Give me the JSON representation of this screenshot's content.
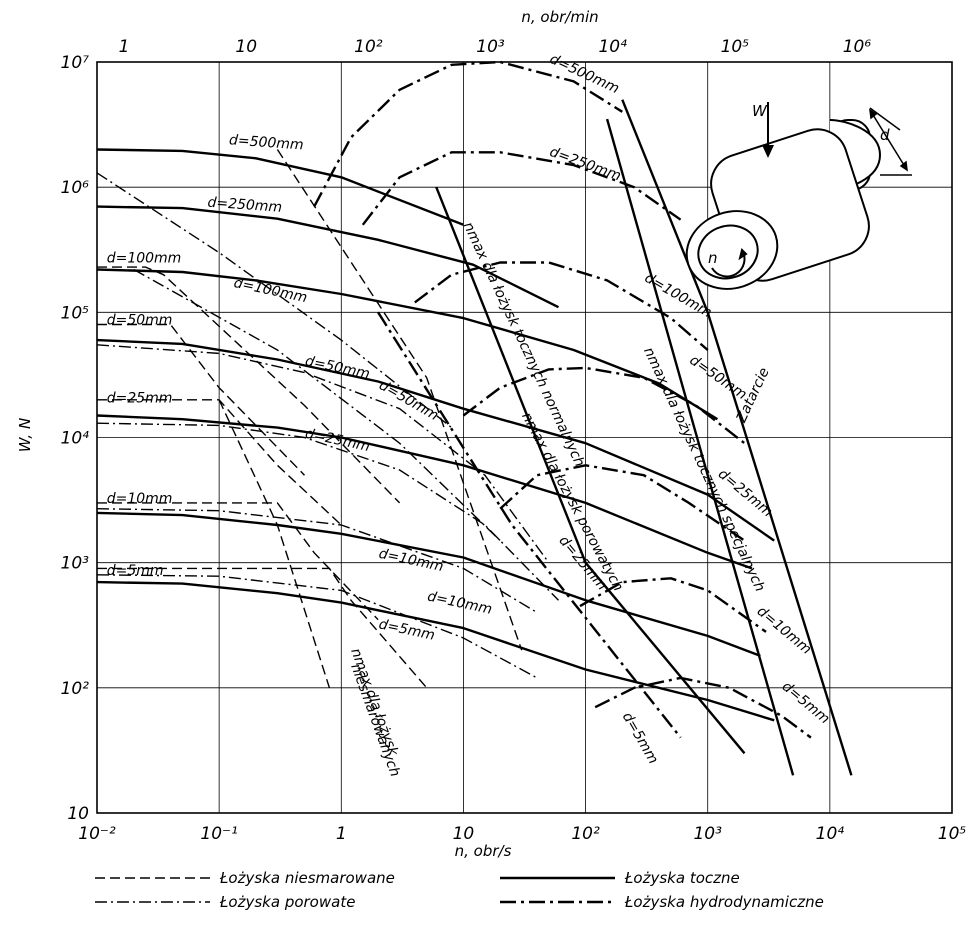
{
  "chart_data": {
    "type": "line",
    "xscale": "log",
    "yscale": "log",
    "xlim": [
      0.01,
      100000
    ],
    "ylim": [
      10,
      10000000
    ],
    "xlabel": "n, obr/s",
    "ylabel": "W, N",
    "top_axis": {
      "label": "n, obr/min",
      "ticks": [
        {
          "v": 1,
          "t": "1"
        },
        {
          "v": 10,
          "t": "10"
        },
        {
          "v": 100,
          "t": "10²"
        },
        {
          "v": 1000,
          "t": "10³"
        },
        {
          "v": 10000,
          "t": "10⁴"
        },
        {
          "v": 100000,
          "t": "10⁵"
        },
        {
          "v": 1000000,
          "t": "10⁶"
        }
      ]
    },
    "x_ticks": [
      {
        "v": 0.01,
        "t": "10⁻²"
      },
      {
        "v": 0.1,
        "t": "10⁻¹"
      },
      {
        "v": 1,
        "t": "1"
      },
      {
        "v": 10,
        "t": "10"
      },
      {
        "v": 100,
        "t": "10²"
      },
      {
        "v": 1000,
        "t": "10³"
      },
      {
        "v": 10000,
        "t": "10⁴"
      },
      {
        "v": 100000,
        "t": "10⁵"
      }
    ],
    "y_ticks": [
      {
        "v": 10,
        "t": "10"
      },
      {
        "v": 100,
        "t": "10²"
      },
      {
        "v": 1000,
        "t": "10³"
      },
      {
        "v": 10000,
        "t": "10⁴"
      },
      {
        "v": 100000,
        "t": "10⁵"
      },
      {
        "v": 1000000,
        "t": "10⁶"
      },
      {
        "v": 10000000,
        "t": "10⁷"
      }
    ],
    "grid": true,
    "legend_position": "bottom",
    "legend": [
      {
        "style": "unlubricated",
        "label": "Łożyska niesmarowane"
      },
      {
        "style": "rolling",
        "label": "Łożyska toczne"
      },
      {
        "style": "porous",
        "label": "Łożyska porowate"
      },
      {
        "style": "hydro",
        "label": "Łożyska hydrodynamiczne"
      }
    ],
    "series": [
      {
        "style": "rolling",
        "name": "d=500mm",
        "points": [
          [
            0.01,
            2000000
          ],
          [
            0.05,
            1950000
          ],
          [
            0.2,
            1700000
          ],
          [
            1,
            1200000
          ],
          [
            10,
            500000
          ]
        ]
      },
      {
        "style": "rolling",
        "name": "d=250mm",
        "points": [
          [
            0.01,
            700000
          ],
          [
            0.05,
            680000
          ],
          [
            0.3,
            560000
          ],
          [
            2,
            380000
          ],
          [
            12,
            240000
          ],
          [
            60,
            110000
          ]
        ]
      },
      {
        "style": "rolling",
        "name": "d=100mm",
        "points": [
          [
            0.01,
            220000
          ],
          [
            0.05,
            210000
          ],
          [
            0.2,
            180000
          ],
          [
            1,
            140000
          ],
          [
            10,
            90000
          ],
          [
            80,
            50000
          ],
          [
            400,
            27000
          ],
          [
            1200,
            14000
          ]
        ]
      },
      {
        "style": "rolling",
        "name": "d=50mm",
        "points": [
          [
            0.01,
            60000
          ],
          [
            0.05,
            56000
          ],
          [
            0.3,
            42000
          ],
          [
            2,
            28000
          ],
          [
            10,
            17000
          ],
          [
            100,
            9000
          ],
          [
            1000,
            3500
          ],
          [
            3500,
            1500
          ]
        ]
      },
      {
        "style": "rolling",
        "name": "d=25mm",
        "points": [
          [
            0.01,
            15000
          ],
          [
            0.05,
            14000
          ],
          [
            0.3,
            12000
          ],
          [
            1,
            10000
          ],
          [
            10,
            6000
          ],
          [
            100,
            3000
          ],
          [
            1000,
            1200
          ],
          [
            2300,
            900
          ]
        ]
      },
      {
        "style": "rolling",
        "name": "d=10mm",
        "points": [
          [
            0.01,
            2500
          ],
          [
            0.05,
            2400
          ],
          [
            0.3,
            2000
          ],
          [
            1,
            1700
          ],
          [
            10,
            1100
          ],
          [
            100,
            500
          ],
          [
            1000,
            260
          ],
          [
            2700,
            180
          ]
        ]
      },
      {
        "style": "rolling",
        "name": "d=5mm",
        "points": [
          [
            0.01,
            700
          ],
          [
            0.05,
            680
          ],
          [
            0.3,
            570
          ],
          [
            1,
            480
          ],
          [
            10,
            300
          ],
          [
            100,
            140
          ],
          [
            1000,
            80
          ],
          [
            3500,
            55
          ]
        ]
      },
      {
        "style": "unlubricated",
        "name": "d=100mm",
        "points": [
          [
            0.01,
            230000
          ],
          [
            0.025,
            230000
          ],
          [
            0.035,
            200000
          ],
          [
            0.5,
            18000
          ],
          [
            3,
            3000
          ]
        ]
      },
      {
        "style": "unlubricated",
        "name": "d=50mm",
        "points": [
          [
            0.01,
            80000
          ],
          [
            0.04,
            80000
          ],
          [
            0.1,
            25000
          ],
          [
            0.5,
            5000
          ]
        ]
      },
      {
        "style": "unlubricated",
        "name": "d=25mm",
        "points": [
          [
            0.01,
            20000
          ],
          [
            0.1,
            20000
          ],
          [
            0.3,
            6000
          ],
          [
            1,
            2000
          ]
        ]
      },
      {
        "style": "unlubricated",
        "name": "d=10mm",
        "points": [
          [
            0.01,
            3000
          ],
          [
            0.3,
            3000
          ],
          [
            0.6,
            1200
          ],
          [
            2,
            350
          ]
        ]
      },
      {
        "style": "unlubricated",
        "name": "d=5mm",
        "points": [
          [
            0.01,
            900
          ],
          [
            0.8,
            900
          ],
          [
            1.2,
            500
          ],
          [
            5,
            100
          ]
        ]
      },
      {
        "style": "porous",
        "name": "d=500mm",
        "points": [
          [
            0.01,
            1300000
          ],
          [
            0.1,
            300000
          ],
          [
            1,
            60000
          ],
          [
            8,
            12000
          ]
        ]
      },
      {
        "style": "porous",
        "name": "d=100mm",
        "points": [
          [
            0.02,
            220000
          ],
          [
            0.3,
            50000
          ],
          [
            3,
            9000
          ],
          [
            20,
            1500
          ]
        ]
      },
      {
        "style": "porous",
        "name": "d=50mm",
        "points": [
          [
            0.01,
            55000
          ],
          [
            0.1,
            47000
          ],
          [
            0.5,
            33000
          ],
          [
            3,
            17000
          ],
          [
            15,
            5000
          ],
          [
            50,
            1000
          ]
        ]
      },
      {
        "style": "porous",
        "name": "d=25mm",
        "points": [
          [
            0.01,
            13000
          ],
          [
            0.1,
            12500
          ],
          [
            0.5,
            10000
          ],
          [
            3,
            5500
          ],
          [
            15,
            2000
          ],
          [
            60,
            500
          ]
        ]
      },
      {
        "style": "porous",
        "name": "d=10mm",
        "points": [
          [
            0.01,
            2700
          ],
          [
            0.1,
            2600
          ],
          [
            1,
            2000
          ],
          [
            10,
            900
          ],
          [
            40,
            400
          ]
        ]
      },
      {
        "style": "porous",
        "name": "d=5mm",
        "points": [
          [
            0.01,
            800
          ],
          [
            0.1,
            780
          ],
          [
            1,
            600
          ],
          [
            10,
            250
          ],
          [
            40,
            120
          ]
        ]
      },
      {
        "style": "hydro",
        "name": "d=500mm",
        "points": [
          [
            0.6,
            700000
          ],
          [
            1.2,
            2500000
          ],
          [
            3,
            6000000
          ],
          [
            8,
            9500000
          ],
          [
            20,
            10000000
          ],
          [
            80,
            7000000
          ],
          [
            200,
            4000000
          ]
        ]
      },
      {
        "style": "hydro",
        "name": "d=250mm",
        "points": [
          [
            1.5,
            500000
          ],
          [
            3,
            1200000
          ],
          [
            8,
            1900000
          ],
          [
            20,
            1900000
          ],
          [
            80,
            1500000
          ],
          [
            250,
            1000000
          ],
          [
            600,
            550000
          ]
        ]
      },
      {
        "style": "hydro",
        "name": "d=100mm",
        "points": [
          [
            4,
            120000
          ],
          [
            8,
            200000
          ],
          [
            20,
            250000
          ],
          [
            50,
            250000
          ],
          [
            150,
            180000
          ],
          [
            500,
            90000
          ],
          [
            1000,
            50000
          ]
        ]
      },
      {
        "style": "hydro",
        "name": "d=50mm",
        "points": [
          [
            10,
            15000
          ],
          [
            20,
            25000
          ],
          [
            50,
            35000
          ],
          [
            100,
            36000
          ],
          [
            300,
            30000
          ],
          [
            800,
            18000
          ],
          [
            2000,
            9000
          ]
        ]
      },
      {
        "style": "hydro",
        "name": "d=25mm",
        "points": [
          [
            20,
            2700
          ],
          [
            40,
            5000
          ],
          [
            100,
            6000
          ],
          [
            300,
            5000
          ],
          [
            700,
            3000
          ],
          [
            2000,
            1500
          ]
        ]
      },
      {
        "style": "hydro",
        "name": "d=10mm",
        "points": [
          [
            90,
            450
          ],
          [
            200,
            700
          ],
          [
            500,
            750
          ],
          [
            1000,
            600
          ],
          [
            3000,
            280
          ]
        ]
      },
      {
        "style": "hydro",
        "name": "d=5mm",
        "points": [
          [
            120,
            70
          ],
          [
            250,
            100
          ],
          [
            600,
            120
          ],
          [
            1500,
            100
          ],
          [
            4000,
            60
          ],
          [
            7000,
            40
          ]
        ]
      },
      {
        "style": "rolling",
        "name": "nmax dla łożysk tocznych normalnych",
        "points": [
          [
            6,
            1000000
          ],
          [
            100,
            1000
          ],
          [
            2000,
            30
          ]
        ]
      },
      {
        "style": "rolling",
        "name": "nmax dla łożysk tocznych specjalnych",
        "points": [
          [
            150,
            3500000
          ],
          [
            1000,
            5000
          ],
          [
            5000,
            20
          ]
        ]
      },
      {
        "style": "rolling",
        "name": "Zatarcie",
        "points": [
          [
            200,
            5000000
          ],
          [
            1000,
            100000
          ],
          [
            15000,
            20
          ]
        ]
      },
      {
        "style": "hydro",
        "name": "nmax dla łożysk porowatych",
        "points": [
          [
            2,
            100000
          ],
          [
            25,
            2000
          ],
          [
            600,
            40
          ]
        ]
      },
      {
        "style": "unlubricated",
        "name": "nmax dla łożysk niesmarowanych",
        "points": [
          [
            0.1,
            20000
          ],
          [
            0.3,
            2000
          ],
          [
            0.8,
            100
          ]
        ]
      },
      {
        "style": "unlubricated",
        "name": "",
        "points": [
          [
            0.3,
            2000000
          ],
          [
            5,
            30000
          ],
          [
            30,
            200
          ]
        ]
      }
    ],
    "annotations": [
      {
        "text": "d=500mm",
        "x": 0.12,
        "y": 2200000,
        "angle": 4
      },
      {
        "text": "d=250mm",
        "x": 0.08,
        "y": 700000,
        "angle": 4
      },
      {
        "text": "d=100mm",
        "x": 0.012,
        "y": 250000,
        "angle": 0
      },
      {
        "text": "d=100mm",
        "x": 0.13,
        "y": 160000,
        "angle": 12
      },
      {
        "text": "d=50mm",
        "x": 0.012,
        "y": 80000,
        "angle": 0
      },
      {
        "text": "d=50mm",
        "x": 0.5,
        "y": 38000,
        "angle": 12
      },
      {
        "text": "d=25mm",
        "x": 0.012,
        "y": 19000,
        "angle": 0
      },
      {
        "text": "d=25mm",
        "x": 0.5,
        "y": 10000,
        "angle": 12
      },
      {
        "text": "d=10mm",
        "x": 0.012,
        "y": 3000,
        "angle": 0
      },
      {
        "text": "d=10mm",
        "x": 2,
        "y": 1100,
        "angle": 12
      },
      {
        "text": "d=5mm",
        "x": 0.012,
        "y": 800,
        "angle": 0
      },
      {
        "text": "d=5mm",
        "x": 2,
        "y": 300,
        "angle": 12
      },
      {
        "text": "d=50mm",
        "x": 2,
        "y": 25000,
        "angle": 30
      },
      {
        "text": "d=500mm",
        "x": 50,
        "y": 10000000,
        "angle": 25
      },
      {
        "text": "d=250mm",
        "x": 50,
        "y": 1800000,
        "angle": 20
      },
      {
        "text": "d=100mm",
        "x": 300,
        "y": 180000,
        "angle": 30
      },
      {
        "text": "d=50mm",
        "x": 700,
        "y": 40000,
        "angle": 35
      },
      {
        "text": "d=25mm",
        "x": 1200,
        "y": 5000,
        "angle": 40
      },
      {
        "text": "d=25mm",
        "x": 60,
        "y": 1500,
        "angle": 50
      },
      {
        "text": "d=10mm",
        "x": 5,
        "y": 500,
        "angle": 12
      },
      {
        "text": "d=10mm",
        "x": 2500,
        "y": 400,
        "angle": 40
      },
      {
        "text": "d=5mm",
        "x": 4000,
        "y": 100,
        "angle": 40
      },
      {
        "text": "d=5mm",
        "x": 200,
        "y": 60,
        "angle": 60
      },
      {
        "text": "nmax dla łożysk tocznych normalnych",
        "x": 10,
        "y": 500000,
        "angle": 65
      },
      {
        "text": "nmax dla łożysk tocznych specjalnych",
        "x": 300,
        "y": 50000,
        "angle": 65
      },
      {
        "text": "nmax dla łożysk porowatych",
        "x": 30,
        "y": 15000,
        "angle": 62
      },
      {
        "text": "nmax dla łożysk",
        "x": 1.2,
        "y": 200,
        "angle": 70
      },
      {
        "text": "niesmarowanych",
        "x": 1.2,
        "y": 150,
        "angle": 70
      },
      {
        "text": "Zatarcie",
        "x": 2000,
        "y": 13000,
        "angle": -65
      }
    ]
  },
  "inset": {
    "load_label": "W",
    "diameter_label": "d",
    "speed_label": "n"
  }
}
